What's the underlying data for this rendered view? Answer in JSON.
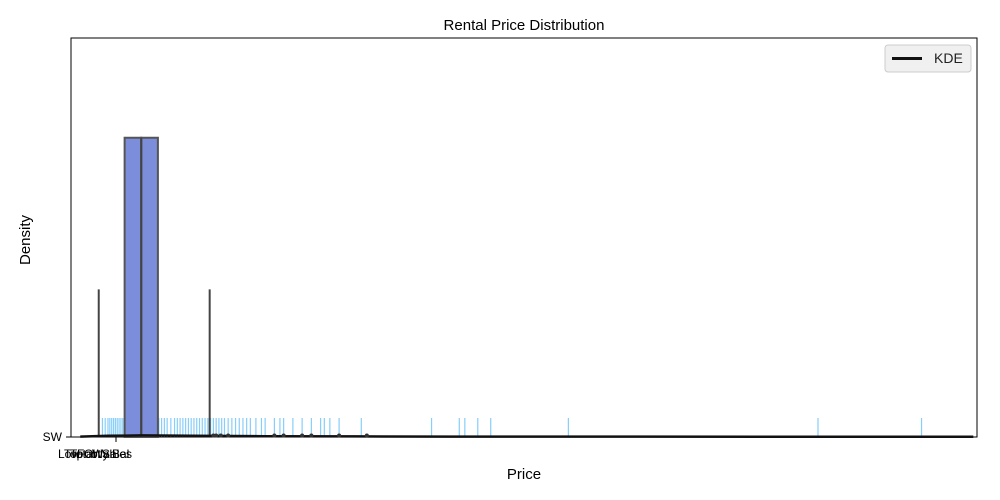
{
  "chart_data": {
    "type": "histogram",
    "title": "Rental Price Distribution",
    "xlabel": "Price",
    "ylabel": "Density",
    "y_tick_labels": [
      "SW"
    ],
    "x_tick_labels": [
      "Low",
      "Top",
      "Total",
      "Foot",
      "Only",
      "Wall",
      "Sales",
      "Bal"
    ],
    "x_range": [
      -50,
      4850
    ],
    "y_range": [
      0,
      1.0
    ],
    "legend": {
      "position": "top-right",
      "entries": [
        {
          "name": "KDE",
          "color": "#111111"
        }
      ]
    },
    "colors": {
      "histogram": "#7b8ddb",
      "rug": "#87cefa",
      "kde": "#111111",
      "box": "#444444"
    },
    "histogram_bins": [
      {
        "x0": 240,
        "x1": 330,
        "density": 0.75
      },
      {
        "x0": 330,
        "x1": 420,
        "density": 0.75
      }
    ],
    "box": {
      "whisker_low": 100,
      "median": 330,
      "whisker_high": 700,
      "height": 0.37
    },
    "rug": [
      100,
      120,
      135,
      150,
      160,
      170,
      180,
      190,
      200,
      210,
      220,
      230,
      245,
      260,
      275,
      290,
      305,
      320,
      335,
      350,
      365,
      380,
      395,
      410,
      425,
      440,
      455,
      470,
      490,
      510,
      525,
      540,
      555,
      570,
      585,
      600,
      615,
      630,
      645,
      660,
      675,
      690,
      705,
      720,
      735,
      750,
      765,
      780,
      800,
      820,
      840,
      860,
      880,
      900,
      920,
      950,
      980,
      1000,
      1050,
      1080,
      1100,
      1150,
      1200,
      1250,
      1300,
      1320,
      1350,
      1400,
      1520,
      1900,
      2050,
      2080,
      2150,
      2220,
      2640,
      3990,
      4550
    ],
    "outliers": [
      720,
      735,
      760,
      800,
      1050,
      1100,
      1200,
      1250,
      1400,
      1550
    ],
    "kde": [
      [
        0,
        0.001
      ],
      [
        150,
        0.003
      ],
      [
        330,
        0.004
      ],
      [
        600,
        0.003
      ],
      [
        1000,
        0.002
      ],
      [
        1500,
        0.0015
      ],
      [
        2000,
        0.001
      ],
      [
        3000,
        0.0008
      ],
      [
        4000,
        0.0006
      ],
      [
        4830,
        0.0005
      ]
    ]
  }
}
